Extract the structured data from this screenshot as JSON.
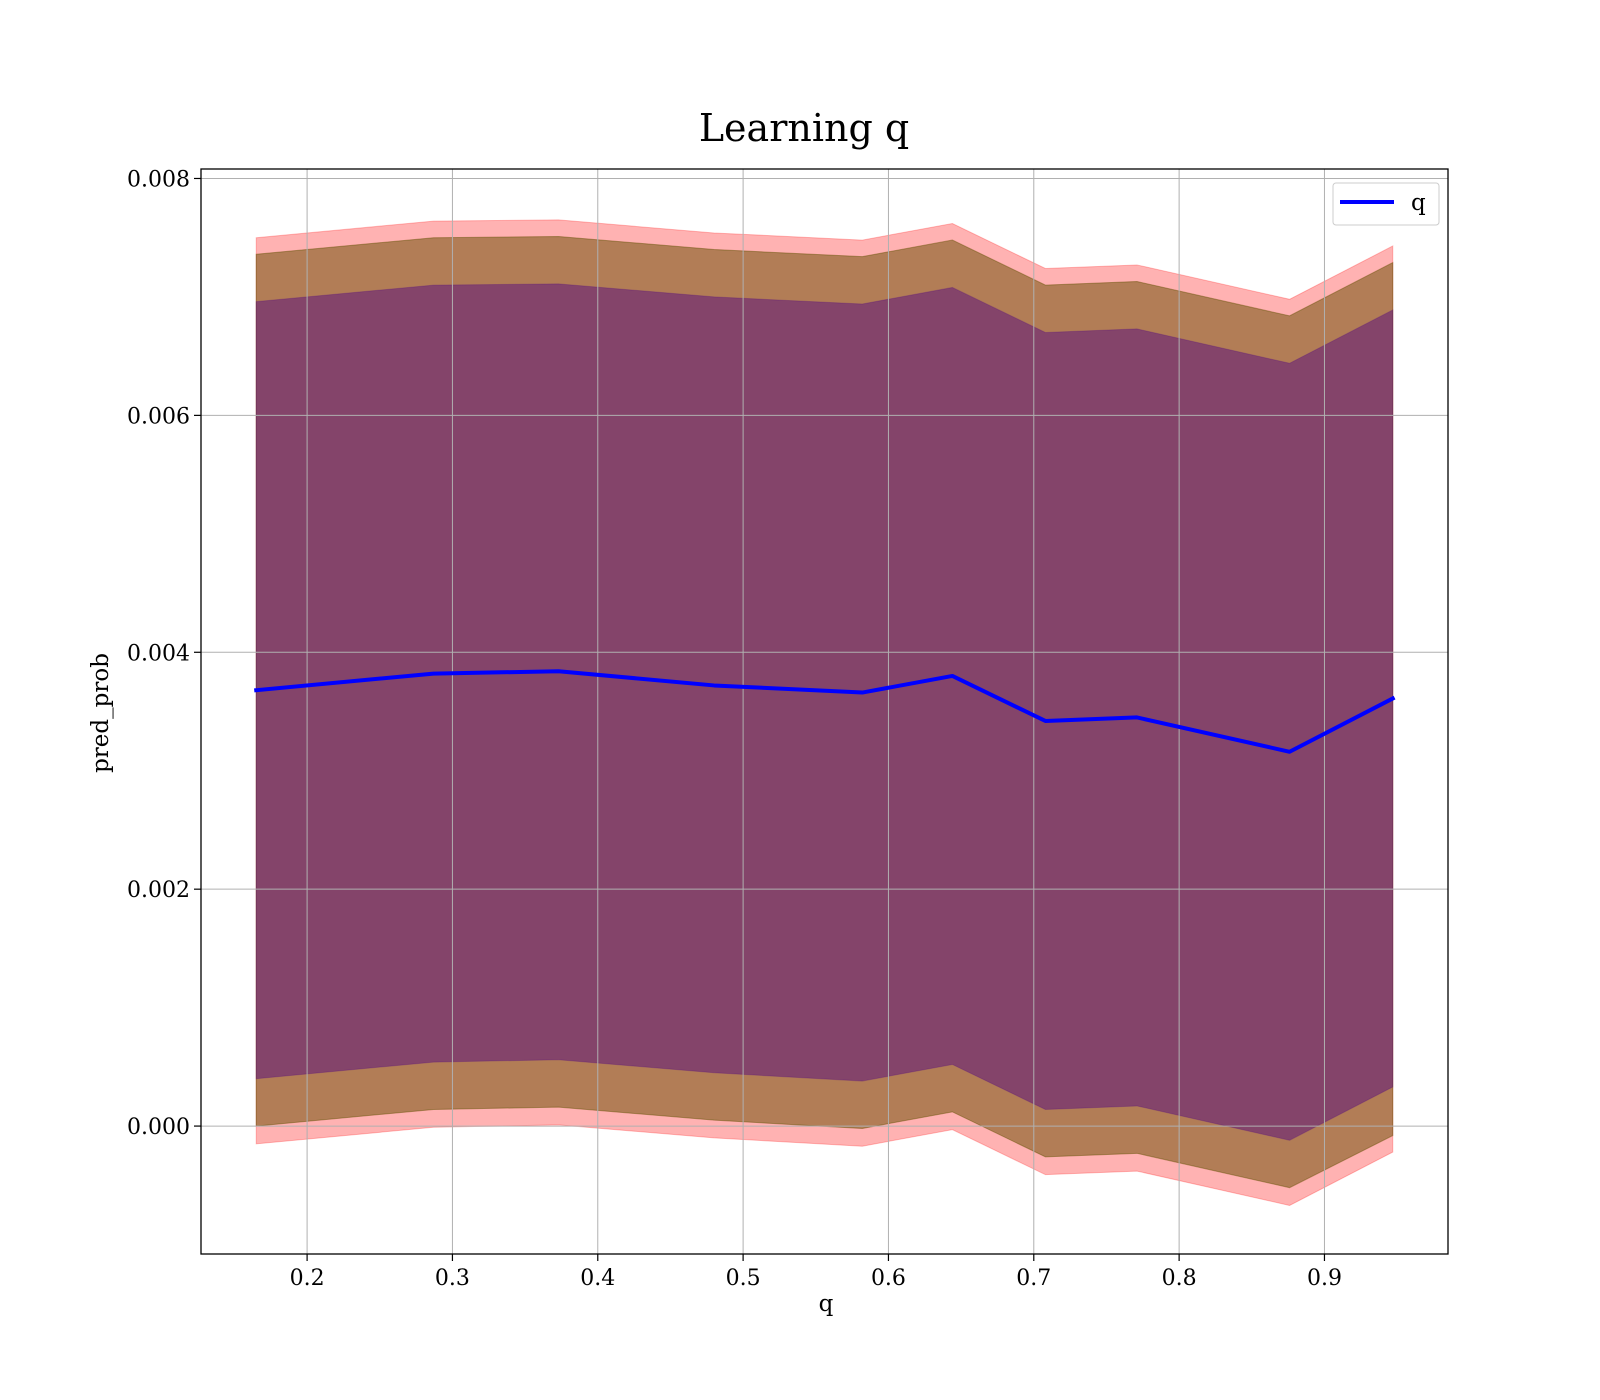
{
  "chart_data": {
    "type": "line",
    "title": "Learning q",
    "xlabel": "q",
    "ylabel": "pred_prob",
    "xlim": [
      0.127,
      0.985
    ],
    "ylim": [
      -0.00108,
      0.00808
    ],
    "xticks": [
      0.2,
      0.3,
      0.4,
      0.5,
      0.6,
      0.7,
      0.8,
      0.9
    ],
    "xtick_labels": [
      "0.2",
      "0.3",
      "0.4",
      "0.5",
      "0.6",
      "0.7",
      "0.8",
      "0.9"
    ],
    "yticks": [
      0.0,
      0.002,
      0.004,
      0.006,
      0.008
    ],
    "ytick_labels": [
      "0.000",
      "0.002",
      "0.004",
      "0.006",
      "0.008"
    ],
    "grid": true,
    "legend_position": "top-right",
    "x": [
      0.165,
      0.287,
      0.373,
      0.48,
      0.582,
      0.644,
      0.708,
      0.771,
      0.876,
      0.947
    ],
    "series": [
      {
        "name": "q",
        "color": "#0000ff",
        "y": [
          0.00368,
          0.00382,
          0.00384,
          0.00372,
          0.00366,
          0.0038,
          0.00342,
          0.00345,
          0.00316,
          0.00361
        ]
      }
    ],
    "bands": [
      {
        "color": "#ff0000",
        "opacity": 0.3,
        "upper": [
          0.0075,
          0.00764,
          0.00765,
          0.00754,
          0.00748,
          0.00762,
          0.00724,
          0.00727,
          0.00698,
          0.00743
        ],
        "lower": [
          -0.00015,
          -1e-05,
          1e-05,
          -0.0001,
          -0.00017,
          -3e-05,
          -0.00041,
          -0.00038,
          -0.00067,
          -0.00022
        ]
      },
      {
        "color": "#ff0000",
        "opacity": 0.3,
        "upper": [
          0.00736,
          0.0075,
          0.00751,
          0.0074,
          0.00734,
          0.00748,
          0.0071,
          0.00713,
          0.00684,
          0.00729
        ],
        "lower": [
          0.0,
          0.00014,
          0.00016,
          5e-05,
          -2e-05,
          0.00012,
          -0.00026,
          -0.00023,
          -0.00052,
          -8e-05
        ]
      },
      {
        "color": "#008000",
        "opacity": 0.3,
        "upper": [
          0.00736,
          0.0075,
          0.00751,
          0.0074,
          0.00734,
          0.00748,
          0.0071,
          0.00713,
          0.00684,
          0.00729
        ],
        "lower": [
          0.0,
          0.00014,
          0.00016,
          5e-05,
          -2e-05,
          0.00012,
          -0.00026,
          -0.00023,
          -0.00052,
          -8e-05
        ]
      },
      {
        "color": "#4b0082",
        "opacity": 0.45,
        "upper": [
          0.00696,
          0.0071,
          0.00711,
          0.007,
          0.00694,
          0.00708,
          0.0067,
          0.00673,
          0.00644,
          0.00689
        ],
        "lower": [
          0.0004,
          0.00054,
          0.00056,
          0.00045,
          0.00038,
          0.00052,
          0.00014,
          0.00017,
          -0.00012,
          0.00033
        ]
      }
    ]
  }
}
